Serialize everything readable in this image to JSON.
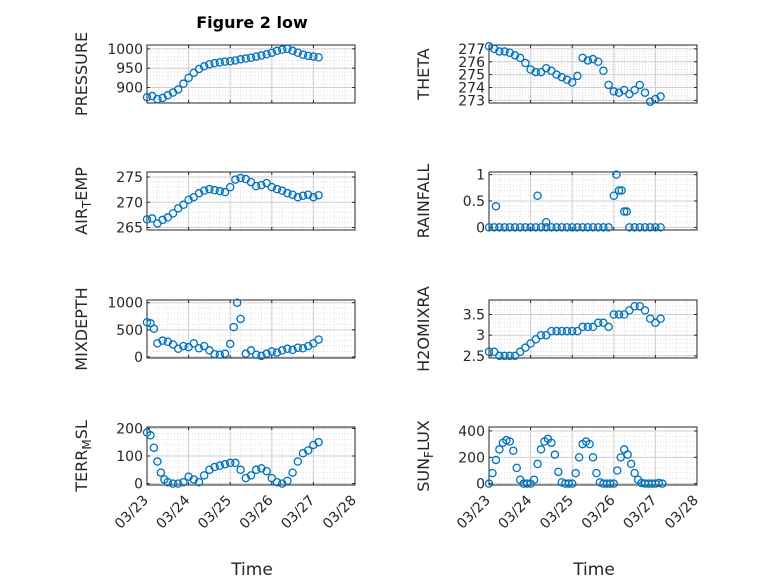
{
  "figure": {
    "title": "Figure 2 low",
    "xlabel": "Time",
    "date_ticks": [
      "03/23",
      "03/24",
      "03/25",
      "03/26",
      "03/27",
      "03/28"
    ]
  },
  "style": {
    "marker_color": "#0072bd",
    "axis_color": "#262626",
    "grid_color": "#dfdfdf",
    "background": "#ffffff"
  },
  "chart_data": [
    {
      "type": "scatter",
      "id": "pressure",
      "ylabel": "PRESSURE",
      "xlim": [
        "03/23",
        "03/28"
      ],
      "ylim": [
        860,
        1010
      ],
      "yticks": [
        900,
        950,
        1000
      ],
      "x": [
        "03/23 00:00",
        "03/23 03:00",
        "03/23 06:00",
        "03/23 09:00",
        "03/23 12:00",
        "03/23 15:00",
        "03/23 18:00",
        "03/23 21:00",
        "03/24 00:00",
        "03/24 03:00",
        "03/24 06:00",
        "03/24 09:00",
        "03/24 12:00",
        "03/24 15:00",
        "03/24 18:00",
        "03/24 21:00",
        "03/25 00:00",
        "03/25 03:00",
        "03/25 06:00",
        "03/25 09:00",
        "03/25 12:00",
        "03/25 15:00",
        "03/25 18:00",
        "03/25 21:00",
        "03/26 00:00",
        "03/26 03:00",
        "03/26 06:00",
        "03/26 09:00",
        "03/26 12:00",
        "03/26 15:00",
        "03/26 18:00",
        "03/26 21:00",
        "03/27 00:00",
        "03/27 03:00"
      ],
      "y": [
        875,
        878,
        870,
        873,
        880,
        887,
        895,
        910,
        925,
        938,
        948,
        955,
        960,
        963,
        965,
        967,
        968,
        970,
        973,
        975,
        977,
        980,
        983,
        986,
        990,
        995,
        998,
        1000,
        995,
        990,
        985,
        982,
        980,
        978
      ]
    },
    {
      "type": "scatter",
      "id": "theta",
      "ylabel": "THETA",
      "xlim": [
        "03/23",
        "03/28"
      ],
      "ylim": [
        272.8,
        277.3
      ],
      "yticks": [
        273,
        274,
        275,
        276,
        277
      ],
      "x": [
        "03/23 00:00",
        "03/23 03:00",
        "03/23 06:00",
        "03/23 09:00",
        "03/23 12:00",
        "03/23 15:00",
        "03/23 18:00",
        "03/23 21:00",
        "03/24 00:00",
        "03/24 03:00",
        "03/24 06:00",
        "03/24 09:00",
        "03/24 12:00",
        "03/24 15:00",
        "03/24 18:00",
        "03/24 21:00",
        "03/25 00:00",
        "03/25 03:00",
        "03/25 06:00",
        "03/25 09:00",
        "03/25 12:00",
        "03/25 15:00",
        "03/25 18:00",
        "03/25 21:00",
        "03/26 00:00",
        "03/26 03:00",
        "03/26 06:00",
        "03/26 09:00",
        "03/26 12:00",
        "03/26 15:00",
        "03/26 18:00",
        "03/26 21:00",
        "03/27 00:00",
        "03/27 03:00"
      ],
      "y": [
        277.2,
        277.0,
        276.8,
        276.8,
        276.7,
        276.5,
        276.3,
        275.9,
        275.4,
        275.2,
        275.2,
        275.5,
        275.3,
        275.0,
        274.8,
        274.6,
        274.4,
        274.9,
        276.3,
        276.1,
        276.2,
        276.0,
        275.3,
        274.2,
        273.7,
        273.6,
        273.8,
        273.5,
        273.8,
        274.2,
        273.6,
        272.9,
        273.1,
        273.3
      ]
    },
    {
      "type": "scatter",
      "id": "air_temp",
      "ylabel": "AIR_TEMP",
      "xlim": [
        "03/23",
        "03/28"
      ],
      "ylim": [
        264.5,
        276
      ],
      "yticks": [
        265,
        270,
        275
      ],
      "x": [
        "03/23 00:00",
        "03/23 03:00",
        "03/23 06:00",
        "03/23 09:00",
        "03/23 12:00",
        "03/23 15:00",
        "03/23 18:00",
        "03/23 21:00",
        "03/24 00:00",
        "03/24 03:00",
        "03/24 06:00",
        "03/24 09:00",
        "03/24 12:00",
        "03/24 15:00",
        "03/24 18:00",
        "03/24 21:00",
        "03/25 00:00",
        "03/25 03:00",
        "03/25 06:00",
        "03/25 09:00",
        "03/25 12:00",
        "03/25 15:00",
        "03/25 18:00",
        "03/25 21:00",
        "03/26 00:00",
        "03/26 03:00",
        "03/26 06:00",
        "03/26 09:00",
        "03/26 12:00",
        "03/26 15:00",
        "03/26 18:00",
        "03/26 21:00",
        "03/27 00:00",
        "03/27 03:00"
      ],
      "y": [
        266.6,
        266.8,
        265.8,
        266.5,
        267.0,
        267.8,
        268.8,
        269.5,
        270.5,
        271.0,
        271.8,
        272.3,
        272.6,
        272.4,
        272.2,
        272.0,
        273.0,
        274.5,
        274.8,
        274.6,
        274.0,
        273.2,
        273.4,
        273.8,
        273.0,
        272.6,
        272.3,
        271.8,
        271.5,
        271.0,
        271.3,
        271.5,
        271.0,
        271.4
      ]
    },
    {
      "type": "scatter",
      "id": "rainfall",
      "ylabel": "RAINFALL",
      "xlim": [
        "03/23",
        "03/28"
      ],
      "ylim": [
        -0.05,
        1.05
      ],
      "yticks": [
        0,
        0.5,
        1
      ],
      "ytick_labels": [
        "0",
        "0.5",
        "1"
      ],
      "x": [
        "03/23 00:00",
        "03/23 03:00",
        "03/23 06:00",
        "03/23 09:00",
        "03/23 12:00",
        "03/23 15:00",
        "03/23 18:00",
        "03/23 21:00",
        "03/24 00:00",
        "03/24 03:00",
        "03/24 06:00",
        "03/24 09:00",
        "03/24 12:00",
        "03/24 15:00",
        "03/24 18:00",
        "03/24 21:00",
        "03/25 00:00",
        "03/25 03:00",
        "03/25 06:00",
        "03/25 09:00",
        "03/25 12:00",
        "03/25 15:00",
        "03/25 18:00",
        "03/25 21:00",
        "03/26 00:00",
        "03/26 01:30",
        "03/26 03:00",
        "03/26 04:30",
        "03/26 06:00",
        "03/26 07:30",
        "03/26 09:00",
        "03/26 12:00",
        "03/26 15:00",
        "03/26 18:00",
        "03/26 21:00",
        "03/27 00:00",
        "03/27 03:00",
        "03/23 04:00",
        "03/24 04:00",
        "03/24 09:00"
      ],
      "y": [
        0,
        0,
        0,
        0,
        0,
        0,
        0,
        0,
        0,
        0,
        0,
        0,
        0,
        0,
        0,
        0,
        0,
        0,
        0,
        0,
        0,
        0,
        0,
        0,
        0.6,
        1.0,
        0.7,
        0.7,
        0.3,
        0.3,
        0,
        0,
        0,
        0,
        0,
        0,
        0,
        0.4,
        0.6,
        0.1
      ]
    },
    {
      "type": "scatter",
      "id": "mixdepth",
      "ylabel": "MIXDEPTH",
      "xlim": [
        "03/23",
        "03/28"
      ],
      "ylim": [
        -20,
        1050
      ],
      "yticks": [
        0,
        500,
        1000
      ],
      "x": [
        "03/23 00:00",
        "03/23 02:00",
        "03/23 04:00",
        "03/23 06:00",
        "03/23 09:00",
        "03/23 12:00",
        "03/23 15:00",
        "03/23 18:00",
        "03/23 21:00",
        "03/24 00:00",
        "03/24 03:00",
        "03/24 06:00",
        "03/24 09:00",
        "03/24 12:00",
        "03/24 15:00",
        "03/24 18:00",
        "03/24 21:00",
        "03/25 00:00",
        "03/25 02:00",
        "03/25 04:00",
        "03/25 06:00",
        "03/25 09:00",
        "03/25 12:00",
        "03/25 15:00",
        "03/25 18:00",
        "03/25 21:00",
        "03/26 00:00",
        "03/26 03:00",
        "03/26 06:00",
        "03/26 09:00",
        "03/26 12:00",
        "03/26 15:00",
        "03/26 18:00",
        "03/26 21:00",
        "03/27 00:00",
        "03/27 03:00"
      ],
      "y": [
        640,
        620,
        520,
        250,
        300,
        280,
        230,
        150,
        200,
        180,
        250,
        160,
        200,
        120,
        50,
        40,
        60,
        240,
        550,
        1000,
        700,
        60,
        120,
        40,
        20,
        60,
        100,
        80,
        120,
        150,
        130,
        170,
        160,
        200,
        250,
        320
      ]
    },
    {
      "type": "scatter",
      "id": "h2omixra",
      "ylabel": "H2OMIXRA",
      "xlim": [
        "03/23",
        "03/28"
      ],
      "ylim": [
        2.45,
        3.85
      ],
      "yticks": [
        2.5,
        3,
        3.5
      ],
      "ytick_labels": [
        "2.5",
        "3",
        "3.5"
      ],
      "x": [
        "03/23 00:00",
        "03/23 03:00",
        "03/23 06:00",
        "03/23 09:00",
        "03/23 12:00",
        "03/23 15:00",
        "03/23 18:00",
        "03/23 21:00",
        "03/24 00:00",
        "03/24 03:00",
        "03/24 06:00",
        "03/24 09:00",
        "03/24 12:00",
        "03/24 15:00",
        "03/24 18:00",
        "03/24 21:00",
        "03/25 00:00",
        "03/25 03:00",
        "03/25 06:00",
        "03/25 09:00",
        "03/25 12:00",
        "03/25 15:00",
        "03/25 18:00",
        "03/25 21:00",
        "03/26 00:00",
        "03/26 03:00",
        "03/26 06:00",
        "03/26 09:00",
        "03/26 12:00",
        "03/26 15:00",
        "03/26 18:00",
        "03/26 21:00",
        "03/27 00:00",
        "03/27 03:00"
      ],
      "y": [
        2.6,
        2.6,
        2.5,
        2.5,
        2.5,
        2.5,
        2.6,
        2.7,
        2.8,
        2.9,
        3.0,
        3.0,
        3.1,
        3.1,
        3.1,
        3.1,
        3.1,
        3.1,
        3.2,
        3.2,
        3.2,
        3.3,
        3.3,
        3.2,
        3.5,
        3.5,
        3.5,
        3.6,
        3.7,
        3.7,
        3.6,
        3.4,
        3.3,
        3.4
      ]
    },
    {
      "type": "scatter",
      "id": "terr_msl",
      "ylabel": "TERR_MSL",
      "xlim": [
        "03/23",
        "03/28"
      ],
      "ylim": [
        -5,
        205
      ],
      "yticks": [
        0,
        100,
        200
      ],
      "x": [
        "03/23 00:00",
        "03/23 02:00",
        "03/23 04:00",
        "03/23 06:00",
        "03/23 08:00",
        "03/23 10:00",
        "03/23 12:00",
        "03/23 15:00",
        "03/23 18:00",
        "03/23 21:00",
        "03/24 00:00",
        "03/24 03:00",
        "03/24 06:00",
        "03/24 09:00",
        "03/24 12:00",
        "03/24 15:00",
        "03/24 18:00",
        "03/24 21:00",
        "03/25 00:00",
        "03/25 03:00",
        "03/25 06:00",
        "03/25 09:00",
        "03/25 12:00",
        "03/25 15:00",
        "03/25 18:00",
        "03/25 21:00",
        "03/26 00:00",
        "03/26 03:00",
        "03/26 06:00",
        "03/26 09:00",
        "03/26 12:00",
        "03/26 15:00",
        "03/26 18:00",
        "03/26 21:00",
        "03/27 00:00",
        "03/27 03:00"
      ],
      "y": [
        185,
        175,
        130,
        80,
        40,
        15,
        5,
        0,
        0,
        5,
        25,
        15,
        5,
        30,
        50,
        60,
        65,
        70,
        75,
        75,
        50,
        20,
        30,
        50,
        55,
        45,
        20,
        5,
        0,
        10,
        40,
        80,
        110,
        120,
        140,
        150
      ]
    },
    {
      "type": "scatter",
      "id": "sun_flux",
      "ylabel": "SUN_FLUX",
      "xlim": [
        "03/23",
        "03/28"
      ],
      "ylim": [
        -10,
        430
      ],
      "yticks": [
        0,
        200,
        400
      ],
      "x": [
        "03/23 00:00",
        "03/23 02:00",
        "03/23 04:00",
        "03/23 06:00",
        "03/23 08:00",
        "03/23 10:00",
        "03/23 12:00",
        "03/23 14:00",
        "03/23 16:00",
        "03/23 18:00",
        "03/23 20:00",
        "03/23 22:00",
        "03/24 00:00",
        "03/24 02:00",
        "03/24 04:00",
        "03/24 06:00",
        "03/24 08:00",
        "03/24 10:00",
        "03/24 12:00",
        "03/24 14:00",
        "03/24 16:00",
        "03/24 18:00",
        "03/24 20:00",
        "03/24 22:00",
        "03/25 00:00",
        "03/25 02:00",
        "03/25 04:00",
        "03/25 06:00",
        "03/25 08:00",
        "03/25 10:00",
        "03/25 12:00",
        "03/25 14:00",
        "03/25 16:00",
        "03/25 18:00",
        "03/25 20:00",
        "03/25 22:00",
        "03/26 00:00",
        "03/26 02:00",
        "03/26 04:00",
        "03/26 06:00",
        "03/26 08:00",
        "03/26 10:00",
        "03/26 12:00",
        "03/26 14:00",
        "03/26 16:00",
        "03/26 18:00",
        "03/26 20:00",
        "03/26 22:00",
        "03/27 00:00",
        "03/27 02:00",
        "03/27 04:00"
      ],
      "y": [
        0,
        80,
        180,
        260,
        310,
        330,
        320,
        250,
        120,
        30,
        0,
        0,
        0,
        30,
        150,
        260,
        320,
        340,
        310,
        220,
        90,
        10,
        0,
        0,
        0,
        80,
        200,
        300,
        320,
        300,
        200,
        80,
        10,
        0,
        0,
        0,
        0,
        100,
        200,
        260,
        220,
        150,
        80,
        30,
        5,
        0,
        0,
        0,
        0,
        5,
        0
      ]
    }
  ]
}
